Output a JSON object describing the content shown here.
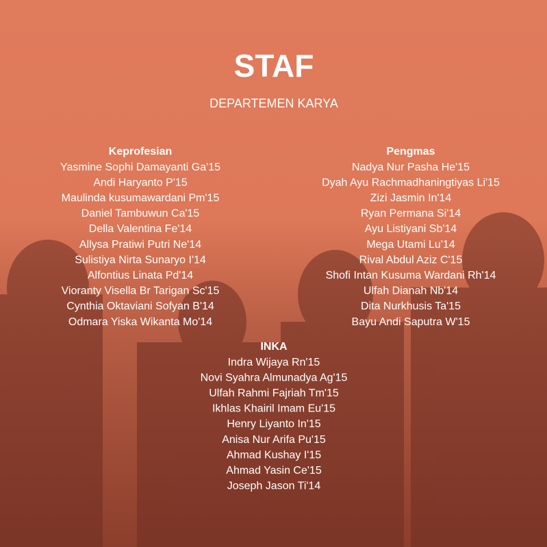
{
  "header": {
    "title": "STAF",
    "subtitle": "DEPARTEMEN KARYA"
  },
  "sections": [
    {
      "heading": "Keprofesian",
      "members": [
        "Yasmine Sophi Damayanti Ga'15",
        "Andi Haryanto P'15",
        "Maulinda kusumawardani Pm'15",
        "Daniel Tambuwun Ca'15",
        "Della Valentina Fe'14",
        "Allysa Pratiwi Putri Ne'14",
        "Sulistiya Nirta Sunaryo I'14",
        "Alfontius Linata Pd'14",
        "Vioranty Visella Br Tarigan Sc'15",
        "Cynthia Oktaviani Sofyan B'14",
        "Odmara Yiska Wikanta Mo'14"
      ]
    },
    {
      "heading": "Pengmas",
      "members": [
        "Nadya Nur Pasha He'15",
        "Dyah Ayu Rachmadhaningtiyas Li'15",
        "Zizi Jasmin In'14",
        "Ryan Permana Si'14",
        "Ayu Listiyani Sb'14",
        "Mega Utami Lu'14",
        "Rival Abdul Aziz C'15",
        "Shofi Intan Kusuma Wardani Rh'14",
        "Ulfah Dianah Nb'14",
        "Dita Nurkhusis Ta'15",
        "Bayu Andi Saputra W'15"
      ]
    },
    {
      "heading": "INKA",
      "members": [
        "Indra Wijaya Rn'15",
        "Novi Syahra Almunadya Ag'15",
        "Ulfah Rahmi Fajriah Tm'15",
        "Ikhlas Khairil Imam Eu'15",
        "Henry Liyanto In'15",
        "Anisa Nur Arifa Pu'15",
        "Ahmad Kushay I'15",
        "Ahmad Yasin Ce'15",
        "Joseph Jason Ti'14"
      ]
    }
  ]
}
